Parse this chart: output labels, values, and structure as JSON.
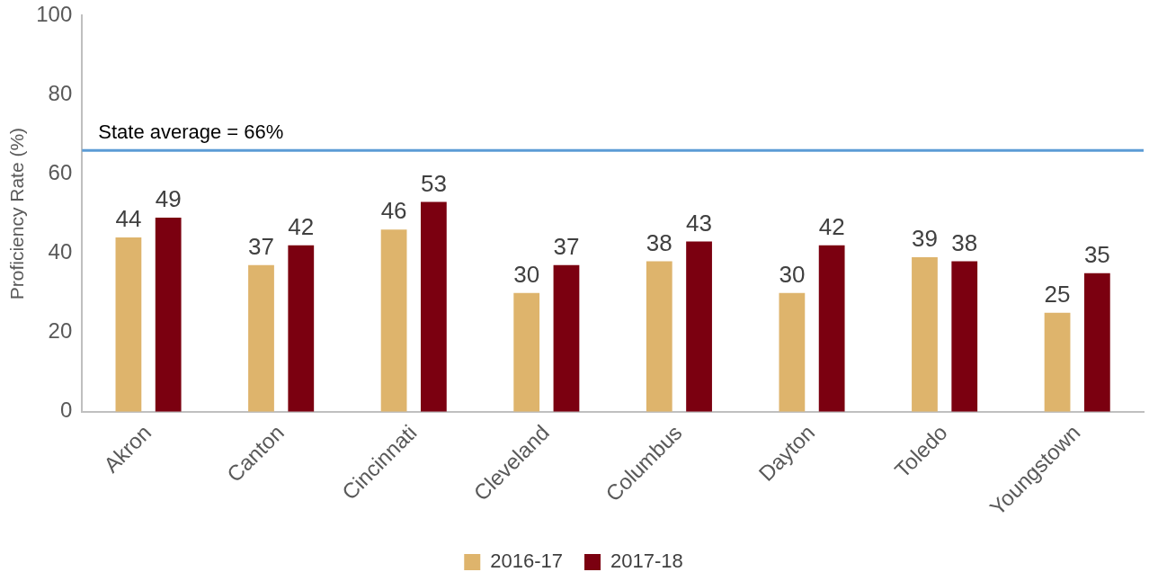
{
  "chart_data": {
    "type": "bar",
    "ylabel": "Proficiency Rate (%)",
    "categories": [
      "Akron",
      "Canton",
      "Cincinnati",
      "Cleveland",
      "Columbus",
      "Dayton",
      "Toledo",
      "Youngstown"
    ],
    "series": [
      {
        "name": "2016-17",
        "color": "#deb46c",
        "values": [
          44,
          37,
          46,
          30,
          38,
          30,
          39,
          25
        ]
      },
      {
        "name": "2017-18",
        "color": "#7b0010",
        "values": [
          49,
          42,
          53,
          37,
          43,
          42,
          38,
          35
        ]
      }
    ],
    "ylim": [
      0,
      100
    ],
    "yticks": [
      0,
      20,
      40,
      60,
      80,
      100
    ],
    "ref_lines": [
      {
        "axis": "y",
        "value": 66,
        "label": "State average = 66%",
        "color": "#5b9bd5"
      }
    ],
    "data_labels": true,
    "grid": false,
    "legend": "bottom"
  }
}
